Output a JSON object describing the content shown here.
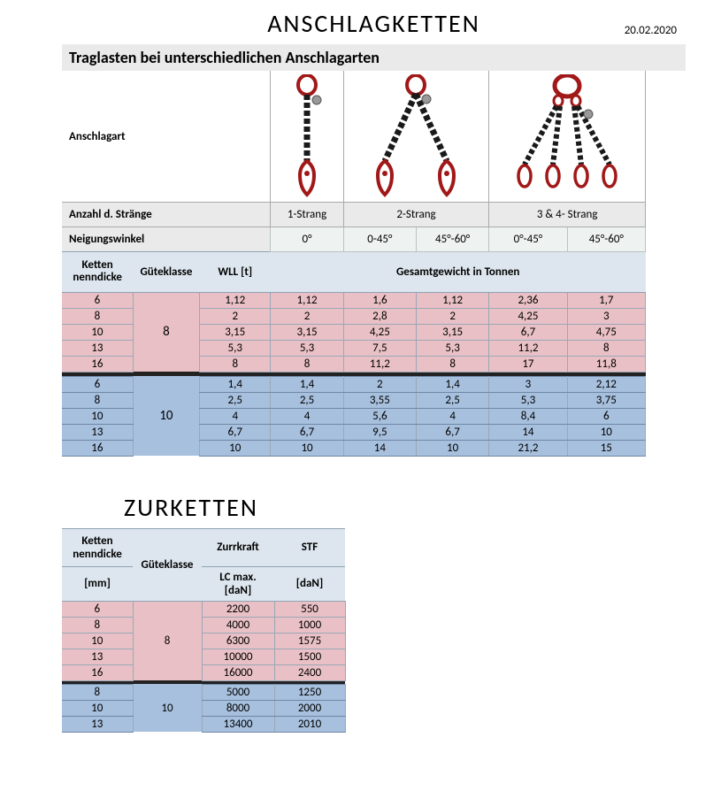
{
  "colors": {
    "pink": "#e9c0c5",
    "blue": "#a7c0de",
    "hdrBlue": "#dde6ee",
    "grey": "#eaeaea",
    "angleGrey": "#eef2f0",
    "borderDark": "#9aa8b6",
    "sep": "#222222",
    "chainRed": "#a11818",
    "chainBlack": "#1a1a1a"
  },
  "anschlag": {
    "title": "ANSCHLAGKETTEN",
    "date": "20.02.2020",
    "subtitle": "Traglasten bei unterschiedlichen Anschlagarten",
    "row_anschlagart": "Anschlagart",
    "row_strands_label": "Anzahl d. Stränge",
    "strands": [
      "1-Strang",
      "2-Strang",
      "3 & 4- Strang"
    ],
    "row_angle_label": "Neigungswinkel",
    "angles": [
      "0°",
      "0-45°",
      "45°-60°",
      "0°-45°",
      "45°-60°"
    ],
    "hdr_ketten": "Ketten nenndicke",
    "hdr_guete": "Güteklasse",
    "hdr_wll": "WLL [t]",
    "hdr_gesamt": "Gesamtgewicht in Tonnen",
    "grade8_label": "8",
    "grade10_label": "10",
    "g8": [
      {
        "d": "6",
        "v": [
          "1,12",
          "1,12",
          "1,6",
          "1,12",
          "2,36",
          "1,7"
        ]
      },
      {
        "d": "8",
        "v": [
          "2",
          "2",
          "2,8",
          "2",
          "4,25",
          "3"
        ]
      },
      {
        "d": "10",
        "v": [
          "3,15",
          "3,15",
          "4,25",
          "3,15",
          "6,7",
          "4,75"
        ]
      },
      {
        "d": "13",
        "v": [
          "5,3",
          "5,3",
          "7,5",
          "5,3",
          "11,2",
          "8"
        ]
      },
      {
        "d": "16",
        "v": [
          "8",
          "8",
          "11,2",
          "8",
          "17",
          "11,8"
        ]
      }
    ],
    "g10": [
      {
        "d": "6",
        "v": [
          "1,4",
          "1,4",
          "2",
          "1,4",
          "3",
          "2,12"
        ]
      },
      {
        "d": "8",
        "v": [
          "2,5",
          "2,5",
          "3,55",
          "2,5",
          "5,3",
          "3,75"
        ]
      },
      {
        "d": "10",
        "v": [
          "4",
          "4",
          "5,6",
          "4",
          "8,4",
          "6"
        ]
      },
      {
        "d": "13",
        "v": [
          "6,7",
          "6,7",
          "9,5",
          "6,7",
          "14",
          "10"
        ]
      },
      {
        "d": "16",
        "v": [
          "10",
          "10",
          "14",
          "10",
          "21,2",
          "15"
        ]
      }
    ]
  },
  "zur": {
    "title": "ZURKETTEN",
    "hdr_ketten": "Ketten nenndicke",
    "hdr_guete": "Güteklasse",
    "hdr_zurr": "Zurrkraft",
    "hdr_stf": "STF",
    "hdr_mm": "[mm]",
    "hdr_lc": "LC max. [daN]",
    "hdr_dan": "[daN]",
    "grade8_label": "8",
    "grade10_label": "10",
    "g8": [
      {
        "d": "6",
        "lc": "2200",
        "stf": "550"
      },
      {
        "d": "8",
        "lc": "4000",
        "stf": "1000"
      },
      {
        "d": "10",
        "lc": "6300",
        "stf": "1575"
      },
      {
        "d": "13",
        "lc": "10000",
        "stf": "1500"
      },
      {
        "d": "16",
        "lc": "16000",
        "stf": "2400"
      }
    ],
    "g10": [
      {
        "d": "8",
        "lc": "5000",
        "stf": "1250"
      },
      {
        "d": "10",
        "lc": "8000",
        "stf": "2000"
      },
      {
        "d": "13",
        "lc": "13400",
        "stf": "2010"
      }
    ]
  }
}
